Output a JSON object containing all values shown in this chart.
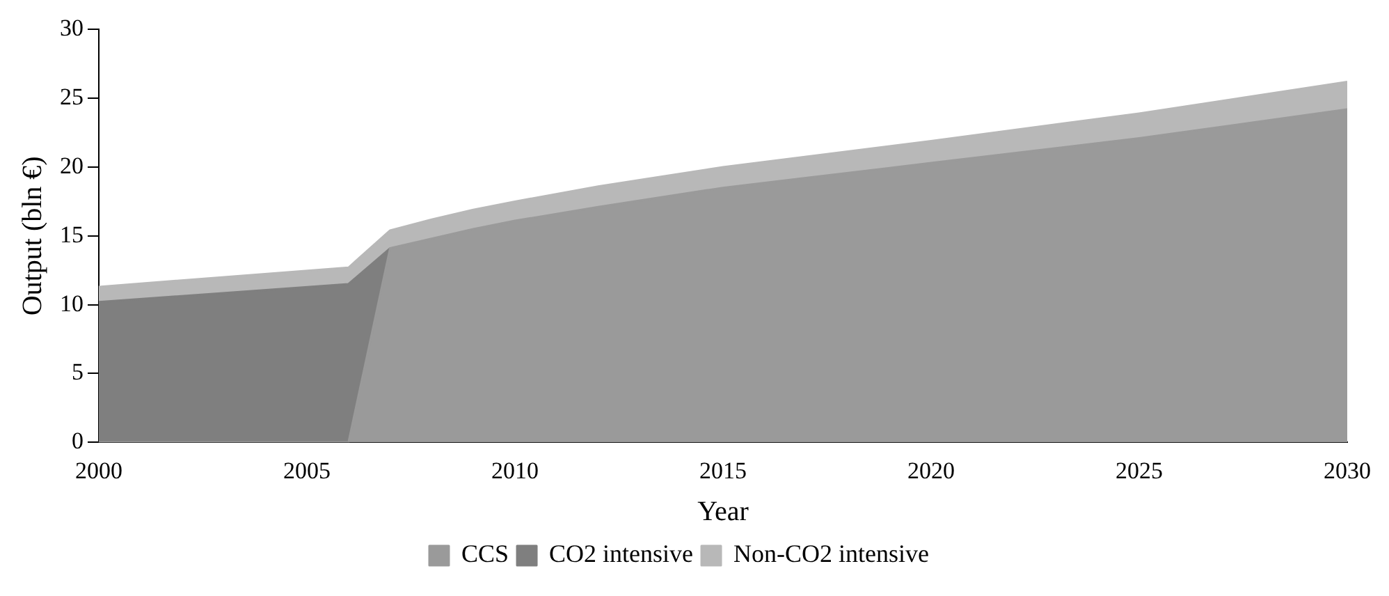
{
  "chart_data": {
    "type": "area",
    "stacked": true,
    "xlabel": "Year",
    "ylabel": "Output (bln €)",
    "x": [
      2000,
      2006,
      2007,
      2008,
      2009,
      2010,
      2012,
      2015,
      2020,
      2025,
      2030
    ],
    "series": [
      {
        "name": "CCS",
        "color": "#9a9a9a",
        "values": [
          0,
          0,
          14.1,
          14.8,
          15.5,
          16.1,
          17.1,
          18.5,
          20.3,
          22.1,
          24.2
        ]
      },
      {
        "name": "CO2 intensive",
        "color": "#7f7f7f",
        "values": [
          10.2,
          11.5,
          0,
          null,
          null,
          null,
          null,
          null,
          null,
          null,
          null
        ]
      },
      {
        "name": "Non-CO2 intensive",
        "color": "#b8b8b8",
        "values": [
          1.1,
          1.2,
          1.3,
          1.4,
          1.4,
          1.4,
          1.5,
          1.5,
          1.6,
          1.8,
          2.0
        ]
      }
    ],
    "xlim": [
      2000,
      2030
    ],
    "xticks": [
      2000,
      2005,
      2010,
      2015,
      2020,
      2025,
      2030
    ],
    "ylim": [
      0,
      30
    ],
    "yticks": [
      0,
      5,
      10,
      15,
      20,
      25,
      30
    ],
    "grid": false,
    "legend": "bottom",
    "marker": "none",
    "line_style": "solid"
  }
}
